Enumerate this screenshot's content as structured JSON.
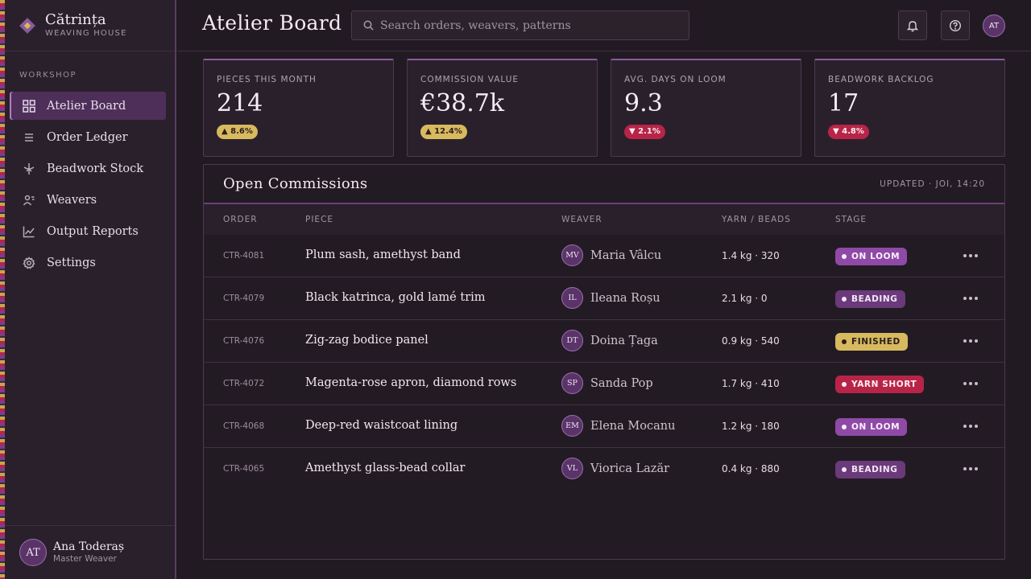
{
  "brand": {
    "name": "Cătrința",
    "subtitle": "WEAVING HOUSE"
  },
  "sidebar": {
    "section_label": "WORKSHOP",
    "items": [
      {
        "label": "Atelier Board",
        "icon": "grid-icon",
        "active": true
      },
      {
        "label": "Order Ledger",
        "icon": "list-icon",
        "active": false
      },
      {
        "label": "Beadwork Stock",
        "icon": "spindle-icon",
        "active": false
      },
      {
        "label": "Weavers",
        "icon": "users-icon",
        "active": false
      },
      {
        "label": "Output Reports",
        "icon": "line-chart-icon",
        "active": false
      },
      {
        "label": "Settings",
        "icon": "gear-icon",
        "active": false
      }
    ],
    "user": {
      "initials": "AT",
      "name": "Ana Toderaș",
      "role": "Master Weaver"
    }
  },
  "header": {
    "title": "Atelier Board",
    "search_placeholder": "Search orders, weavers, patterns",
    "user_initials": "AT"
  },
  "kpis": [
    {
      "label": "PIECES THIS MONTH",
      "value": "214",
      "delta": "▲ 8.6%",
      "trend": "up"
    },
    {
      "label": "COMMISSION VALUE",
      "value": "€38.7k",
      "delta": "▲ 12.4%",
      "trend": "up"
    },
    {
      "label": "AVG. DAYS ON LOOM",
      "value": "9.3",
      "delta": "▼ 2.1%",
      "trend": "down"
    },
    {
      "label": "BEADWORK BACKLOG",
      "value": "17",
      "delta": "▼ 4.8%",
      "trend": "down"
    }
  ],
  "commissions": {
    "title": "Open Commissions",
    "updated": "UPDATED · JOI, 14:20",
    "columns": {
      "order": "ORDER",
      "piece": "PIECE",
      "weaver": "WEAVER",
      "yarn": "YARN / BEADS",
      "stage": "STAGE"
    },
    "rows": [
      {
        "order": "CTR-4081",
        "piece": "Plum sash, amethyst band",
        "initials": "MV",
        "weaver": "Maria Vâlcu",
        "yarn": "1.4 kg · 320",
        "stage": "ON LOOM",
        "stage_kind": "loom"
      },
      {
        "order": "CTR-4079",
        "piece": "Black katrinca, gold lamé trim",
        "initials": "IL",
        "weaver": "Ileana Roșu",
        "yarn": "2.1 kg · 0",
        "stage": "BEADING",
        "stage_kind": "beading"
      },
      {
        "order": "CTR-4076",
        "piece": "Zig-zag bodice panel",
        "initials": "DT",
        "weaver": "Doina Țaga",
        "yarn": "0.9 kg · 540",
        "stage": "FINISHED",
        "stage_kind": "finished"
      },
      {
        "order": "CTR-4072",
        "piece": "Magenta-rose apron, diamond rows",
        "initials": "SP",
        "weaver": "Sanda Pop",
        "yarn": "1.7 kg · 410",
        "stage": "YARN SHORT",
        "stage_kind": "short"
      },
      {
        "order": "CTR-4068",
        "piece": "Deep-red waistcoat lining",
        "initials": "EM",
        "weaver": "Elena Mocanu",
        "yarn": "1.2 kg · 180",
        "stage": "ON LOOM",
        "stage_kind": "loom"
      },
      {
        "order": "CTR-4065",
        "piece": "Amethyst glass-bead collar",
        "initials": "VL",
        "weaver": "Viorica Lazăr",
        "yarn": "0.4 kg · 880",
        "stage": "BEADING",
        "stage_kind": "beading"
      }
    ]
  },
  "colors": {
    "background": "#221a23",
    "accent_plum": "#8e4aa6",
    "gold": "#d7b960",
    "crimson": "#b82448"
  }
}
